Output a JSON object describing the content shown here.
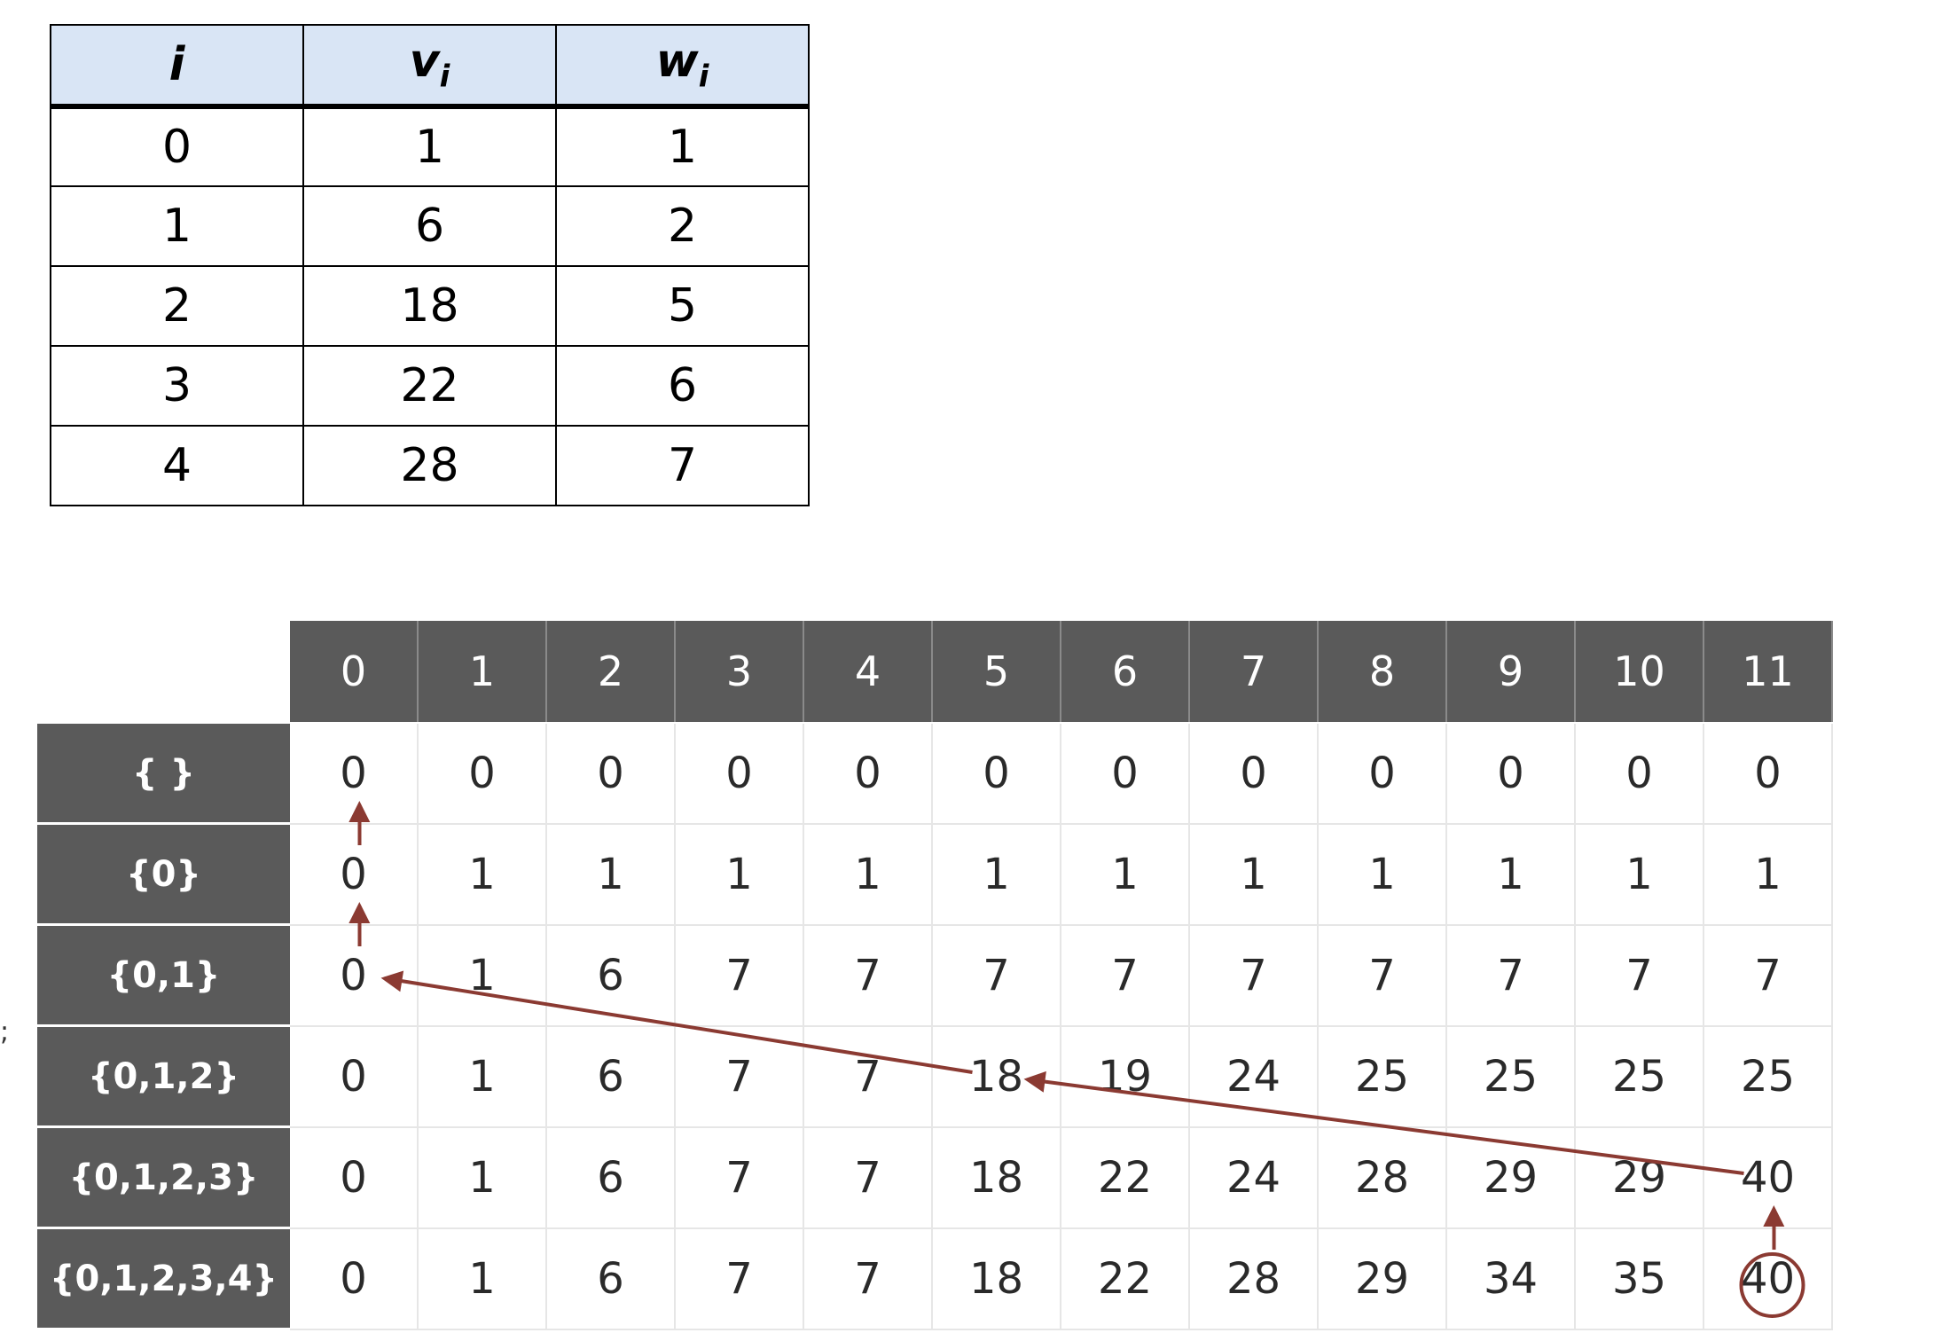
{
  "items_table": {
    "headers": [
      {
        "base": "i",
        "sub": ""
      },
      {
        "base": "v",
        "sub": "i"
      },
      {
        "base": "w",
        "sub": "i"
      }
    ],
    "rows": [
      [
        "0",
        "1",
        "1"
      ],
      [
        "1",
        "6",
        "2"
      ],
      [
        "2",
        "18",
        "5"
      ],
      [
        "3",
        "22",
        "6"
      ],
      [
        "4",
        "28",
        "7"
      ]
    ]
  },
  "dp_table": {
    "col_headers": [
      "0",
      "1",
      "2",
      "3",
      "4",
      "5",
      "6",
      "7",
      "8",
      "9",
      "10",
      "11"
    ],
    "row_headers": [
      "{ }",
      "{0}",
      "{0,1}",
      "{0,1,2}",
      "{0,1,2,3}",
      "{0,1,2,3,4}"
    ],
    "cells": [
      [
        "0",
        "0",
        "0",
        "0",
        "0",
        "0",
        "0",
        "0",
        "0",
        "0",
        "0",
        "0"
      ],
      [
        "0",
        "1",
        "1",
        "1",
        "1",
        "1",
        "1",
        "1",
        "1",
        "1",
        "1",
        "1"
      ],
      [
        "0",
        "1",
        "6",
        "7",
        "7",
        "7",
        "7",
        "7",
        "7",
        "7",
        "7",
        "7"
      ],
      [
        "0",
        "1",
        "6",
        "7",
        "7",
        "18",
        "19",
        "24",
        "25",
        "25",
        "25",
        "25"
      ],
      [
        "0",
        "1",
        "6",
        "7",
        "7",
        "18",
        "22",
        "24",
        "28",
        "29",
        "29",
        "40"
      ],
      [
        "0",
        "1",
        "6",
        "7",
        "7",
        "18",
        "22",
        "28",
        "29",
        "34",
        "35",
        "40"
      ]
    ],
    "circled_cell": {
      "row": 5,
      "col": 11
    },
    "traceback_path": [
      {
        "from": {
          "row": 5,
          "col": 11
        },
        "to": {
          "row": 4,
          "col": 11
        }
      },
      {
        "from": {
          "row": 4,
          "col": 11
        },
        "to": {
          "row": 3,
          "col": 5
        }
      },
      {
        "from": {
          "row": 3,
          "col": 5
        },
        "to": {
          "row": 2,
          "col": 0
        }
      },
      {
        "from": {
          "row": 2,
          "col": 0
        },
        "to": {
          "row": 1,
          "col": 0
        }
      },
      {
        "from": {
          "row": 1,
          "col": 0
        },
        "to": {
          "row": 0,
          "col": 0
        }
      }
    ]
  },
  "stray_mark": ";",
  "colors": {
    "header_bg": "#5a5a5a",
    "items_header_bg": "#d9e5f5",
    "arrow": "#8b3a32"
  }
}
